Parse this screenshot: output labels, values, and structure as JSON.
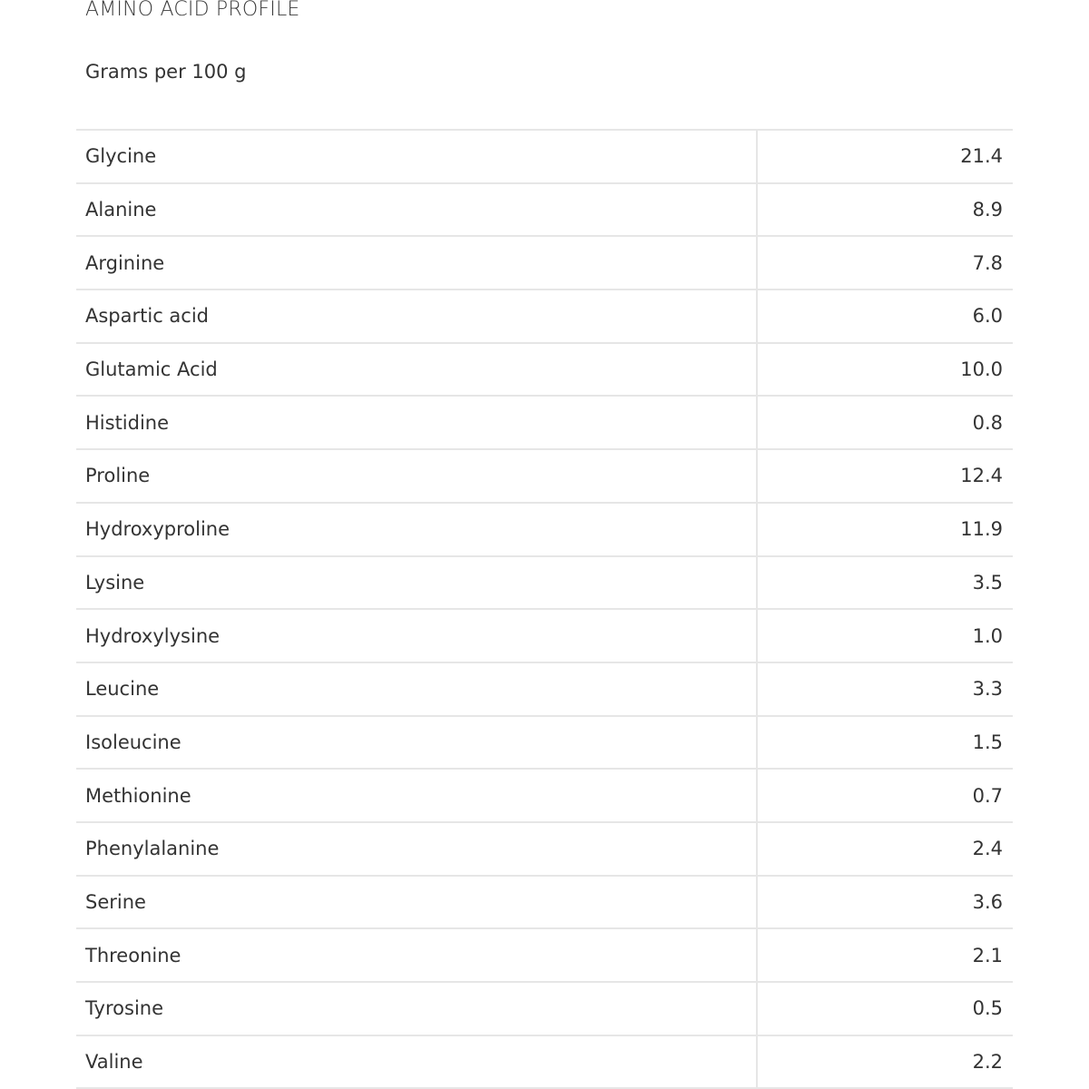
{
  "title": "AMINO ACID PROFILE",
  "subtitle": "Grams per 100 g",
  "rows": [
    {
      "name": "Glycine",
      "value": "21.4"
    },
    {
      "name": "Alanine",
      "value": "8.9"
    },
    {
      "name": "Arginine",
      "value": "7.8"
    },
    {
      "name": "Aspartic acid",
      "value": "6.0"
    },
    {
      "name": "Glutamic Acid",
      "value": "10.0"
    },
    {
      "name": "Histidine",
      "value": "0.8"
    },
    {
      "name": "Proline",
      "value": "12.4"
    },
    {
      "name": "Hydroxyproline",
      "value": "11.9"
    },
    {
      "name": "Lysine",
      "value": "3.5"
    },
    {
      "name": "Hydroxylysine",
      "value": "1.0"
    },
    {
      "name": "Leucine",
      "value": "3.3"
    },
    {
      "name": "Isoleucine",
      "value": "1.5"
    },
    {
      "name": "Methionine",
      "value": "0.7"
    },
    {
      "name": "Phenylalanine",
      "value": "2.4"
    },
    {
      "name": "Serine",
      "value": "3.6"
    },
    {
      "name": "Threonine",
      "value": "2.1"
    },
    {
      "name": "Tyrosine",
      "value": "0.5"
    },
    {
      "name": "Valine",
      "value": "2.2"
    }
  ]
}
